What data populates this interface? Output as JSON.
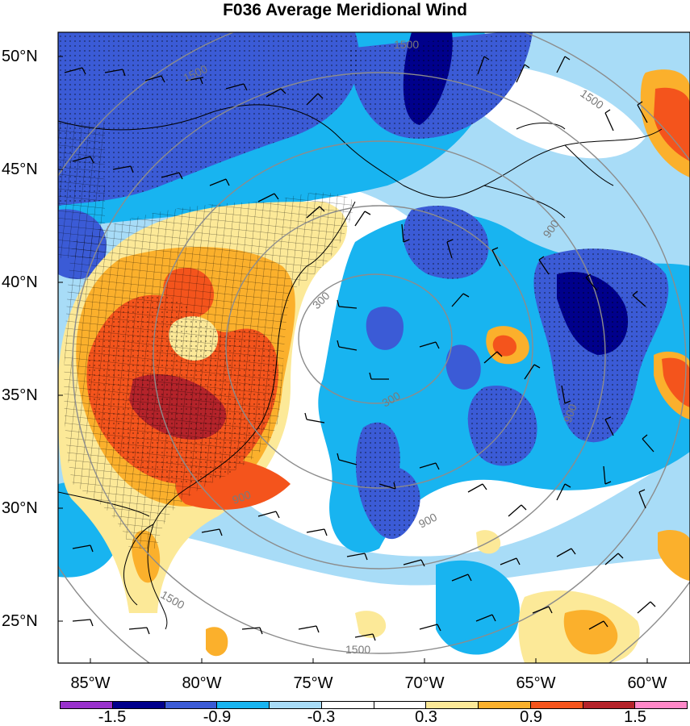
{
  "title": "F036 Average Meridional Wind",
  "lat_labels": [
    "50°N",
    "45°N",
    "40°N",
    "35°N",
    "30°N",
    "25°N"
  ],
  "lon_labels": [
    "85°W",
    "80°W",
    "75°W",
    "70°W",
    "65°W",
    "60°W"
  ],
  "contour_labels": [
    "1500",
    "1500",
    "1500",
    "900",
    "300",
    "300",
    "900",
    "900",
    "900",
    "1500",
    "1500"
  ],
  "colorbar": {
    "colors": [
      "#9932cc",
      "#00008b",
      "#3b5bd6",
      "#18b4f0",
      "#a8dcf7",
      "#ffffff",
      "#ffffff",
      "#fce998",
      "#fbb02c",
      "#f4541c",
      "#b4232a",
      "#ff88c8"
    ],
    "tick_labels": [
      "-1.5",
      "-0.9",
      "-0.3",
      "0.3",
      "0.9",
      "1.5"
    ]
  },
  "palette": {
    "ocean_light": "#a8dcf7",
    "ocean_mid": "#18b4f0",
    "ocean_deep": "#3b5bd6",
    "ocean_darkest": "#00008b",
    "warm_light": "#fce998",
    "warm_mid": "#fbb02c",
    "warm_strong": "#f4541c",
    "warm_max": "#b4232a",
    "contour_gray": "#8c8c8c"
  }
}
